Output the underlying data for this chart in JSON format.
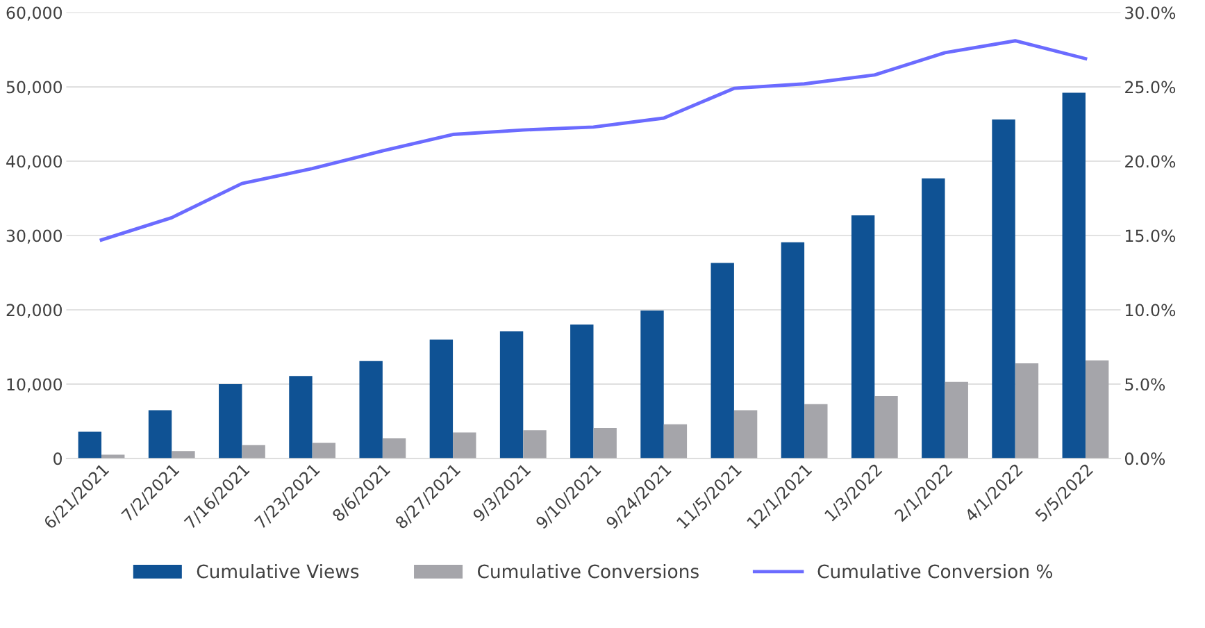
{
  "chart_data": {
    "type": "bar",
    "categories": [
      "6/21/2021",
      "7/2/2021",
      "7/16/2021",
      "7/23/2021",
      "8/6/2021",
      "8/27/2021",
      "9/3/2021",
      "9/10/2021",
      "9/24/2021",
      "11/5/2021",
      "12/1/2021",
      "1/3/2022",
      "2/1/2022",
      "4/1/2022",
      "5/5/2022"
    ],
    "series": [
      {
        "name": "Cumulative Views",
        "color": "#0f5294",
        "values": [
          3600,
          6500,
          10000,
          11100,
          13100,
          16000,
          17100,
          18000,
          19900,
          26300,
          29100,
          32700,
          37700,
          45600,
          49200
        ]
      },
      {
        "name": "Cumulative Conversions",
        "color": "#a5a5aa",
        "values": [
          500,
          1000,
          1800,
          2100,
          2700,
          3500,
          3800,
          4100,
          4600,
          6500,
          7300,
          8400,
          10300,
          12800,
          13200
        ]
      },
      {
        "name": "Cumulative Conversion %",
        "type": "line",
        "axis": "y2",
        "color": "#6b6bff",
        "values": [
          14.7,
          16.2,
          18.5,
          19.5,
          20.7,
          21.8,
          22.1,
          22.3,
          22.9,
          24.9,
          25.2,
          25.8,
          27.3,
          28.1,
          26.9
        ]
      }
    ],
    "ylim": [
      0,
      60000
    ],
    "yticks": [
      0,
      {
        "value": 10000,
        "label": "10,000"
      },
      {
        "value": 20000,
        "label": "20,000"
      },
      {
        "value": 30000,
        "label": "30,000"
      },
      {
        "value": 40000,
        "label": "40,000"
      },
      {
        "value": 50000,
        "label": "50,000"
      },
      {
        "value": 60000,
        "label": "60,000"
      }
    ],
    "y2lim": [
      0,
      30
    ],
    "y2ticks": [
      {
        "value": 0,
        "label": "0.0%"
      },
      {
        "value": 5,
        "label": "5.0%"
      },
      {
        "value": 10,
        "label": "10.0%"
      },
      {
        "value": 15,
        "label": "15.0%"
      },
      {
        "value": 20,
        "label": "20.0%"
      },
      {
        "value": 25,
        "label": "25.0%"
      },
      {
        "value": 30,
        "label": "30.0%"
      }
    ],
    "grid": "y",
    "legend": "bottom"
  }
}
